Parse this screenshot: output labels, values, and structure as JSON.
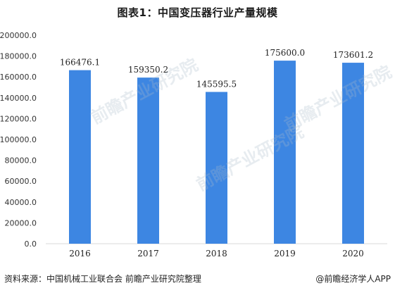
{
  "title": "图表1：中国变压器行业产量规模",
  "footer": {
    "source": "资料来源：中国机械工业联合会 前瞻产业研究院整理",
    "brand": "@前瞻经济学人APP"
  },
  "watermark": {
    "text": "前瞻产业研究院"
  },
  "colors": {
    "bar": "#3d86e2",
    "axis": "#d9d9d9",
    "text": "#333333"
  },
  "chart_data": {
    "type": "bar",
    "title": "图表1：中国变压器行业产量规模",
    "categories": [
      "2016",
      "2017",
      "2018",
      "2019",
      "2020"
    ],
    "values": [
      166476.1,
      159350.2,
      145595.5,
      175600.0,
      173601.2
    ],
    "value_labels": [
      "166476.1",
      "159350.2",
      "145595.5",
      "175600.0",
      "173601.2"
    ],
    "xlabel": "",
    "ylabel": "",
    "ylim": [
      0,
      200000
    ],
    "yticks": [
      "0.0",
      "20000.0",
      "40000.0",
      "60000.0",
      "80000.0",
      "100000.0",
      "120000.0",
      "140000.0",
      "160000.0",
      "180000.0",
      "200000.0"
    ],
    "grid": false,
    "legend": "none"
  }
}
